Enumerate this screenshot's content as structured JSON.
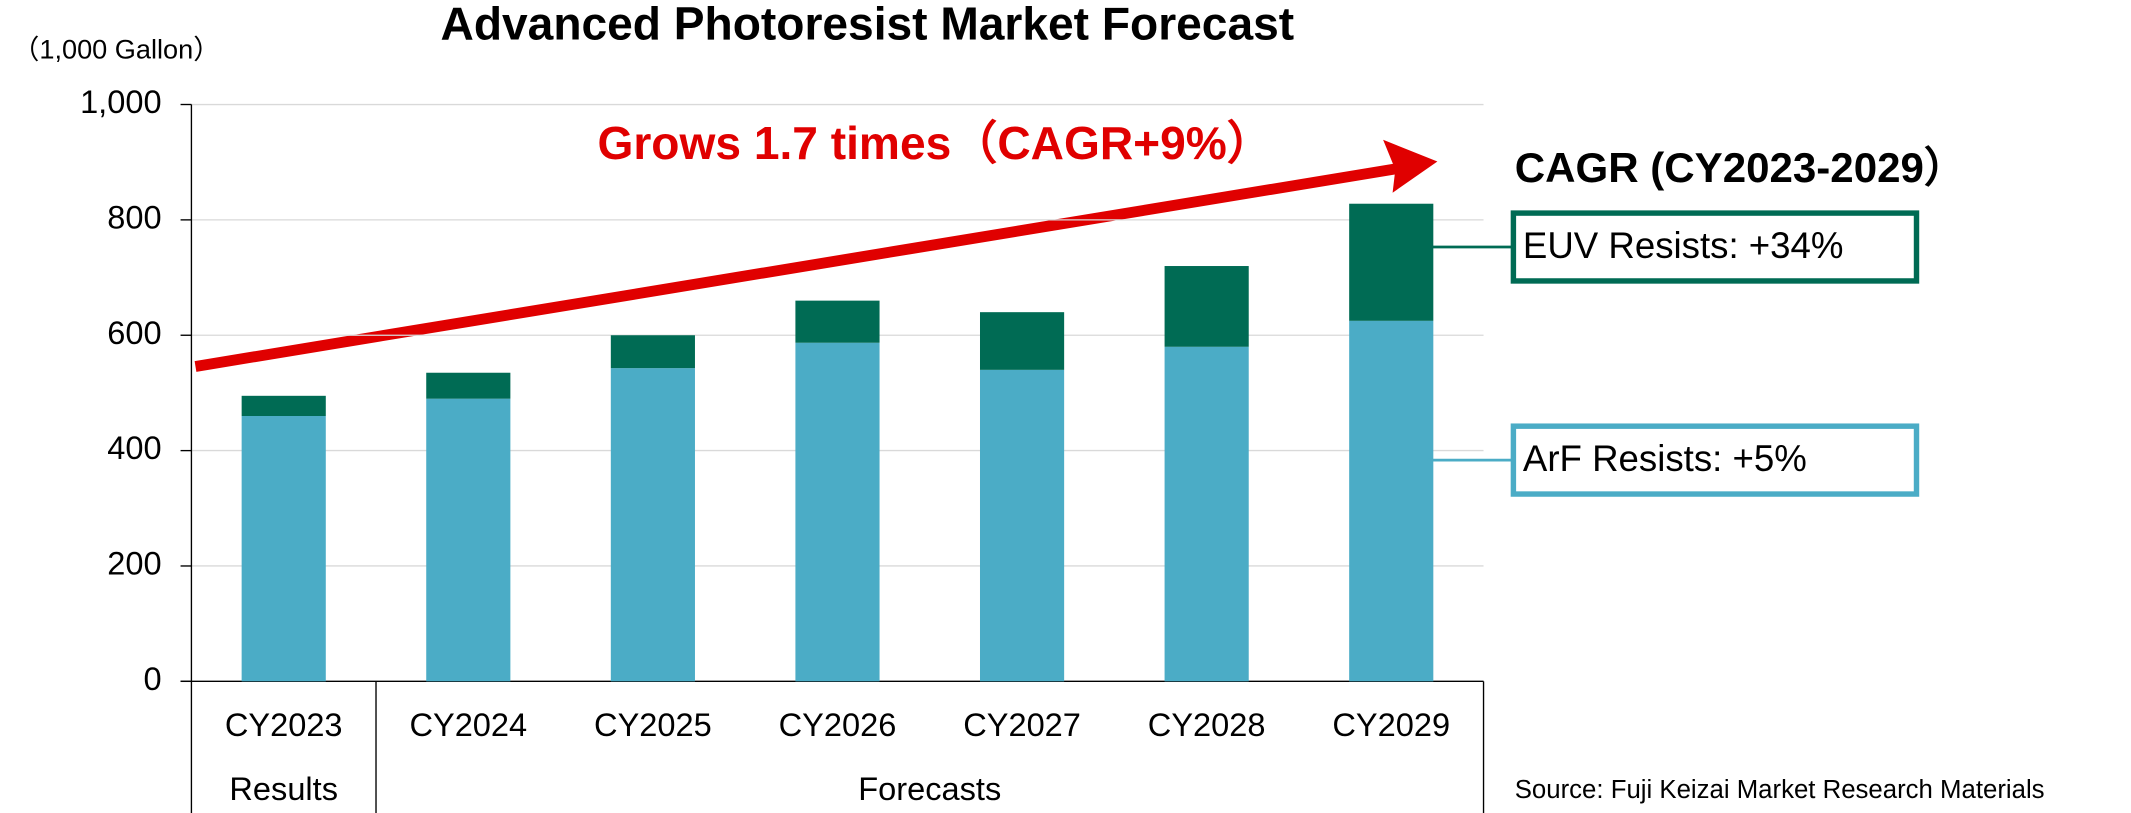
{
  "chart_data": {
    "type": "bar",
    "stacked": true,
    "title": "Advanced Photoresist Market Forecast",
    "y_label": "（1,000 Gallon）",
    "annotation": "Grows 1.7 times（CAGR+9%）",
    "cagr_title": "CAGR (CY2023-2029）",
    "source": "Source: Fuji Keizai Market Research Materials",
    "categories": [
      "CY2023",
      "CY2024",
      "CY2025",
      "CY2026",
      "CY2027",
      "CY2028",
      "CY2029"
    ],
    "groups": [
      {
        "label": "Results"
      },
      {
        "label": "Forecasts"
      }
    ],
    "series": [
      {
        "name": "ArF Resists: +5%",
        "color": "#4bacc6",
        "values": [
          460,
          490,
          543,
          587,
          540,
          580,
          625
        ]
      },
      {
        "name": "EUV Resists: +34%",
        "color": "#006b54",
        "values": [
          35,
          45,
          57,
          73,
          100,
          140,
          203
        ]
      }
    ],
    "ylim": [
      0,
      1000
    ],
    "yticks": [
      0,
      200,
      400,
      600,
      800,
      {
        "value": 1000,
        "label": "1,000"
      }
    ],
    "grid": true
  }
}
